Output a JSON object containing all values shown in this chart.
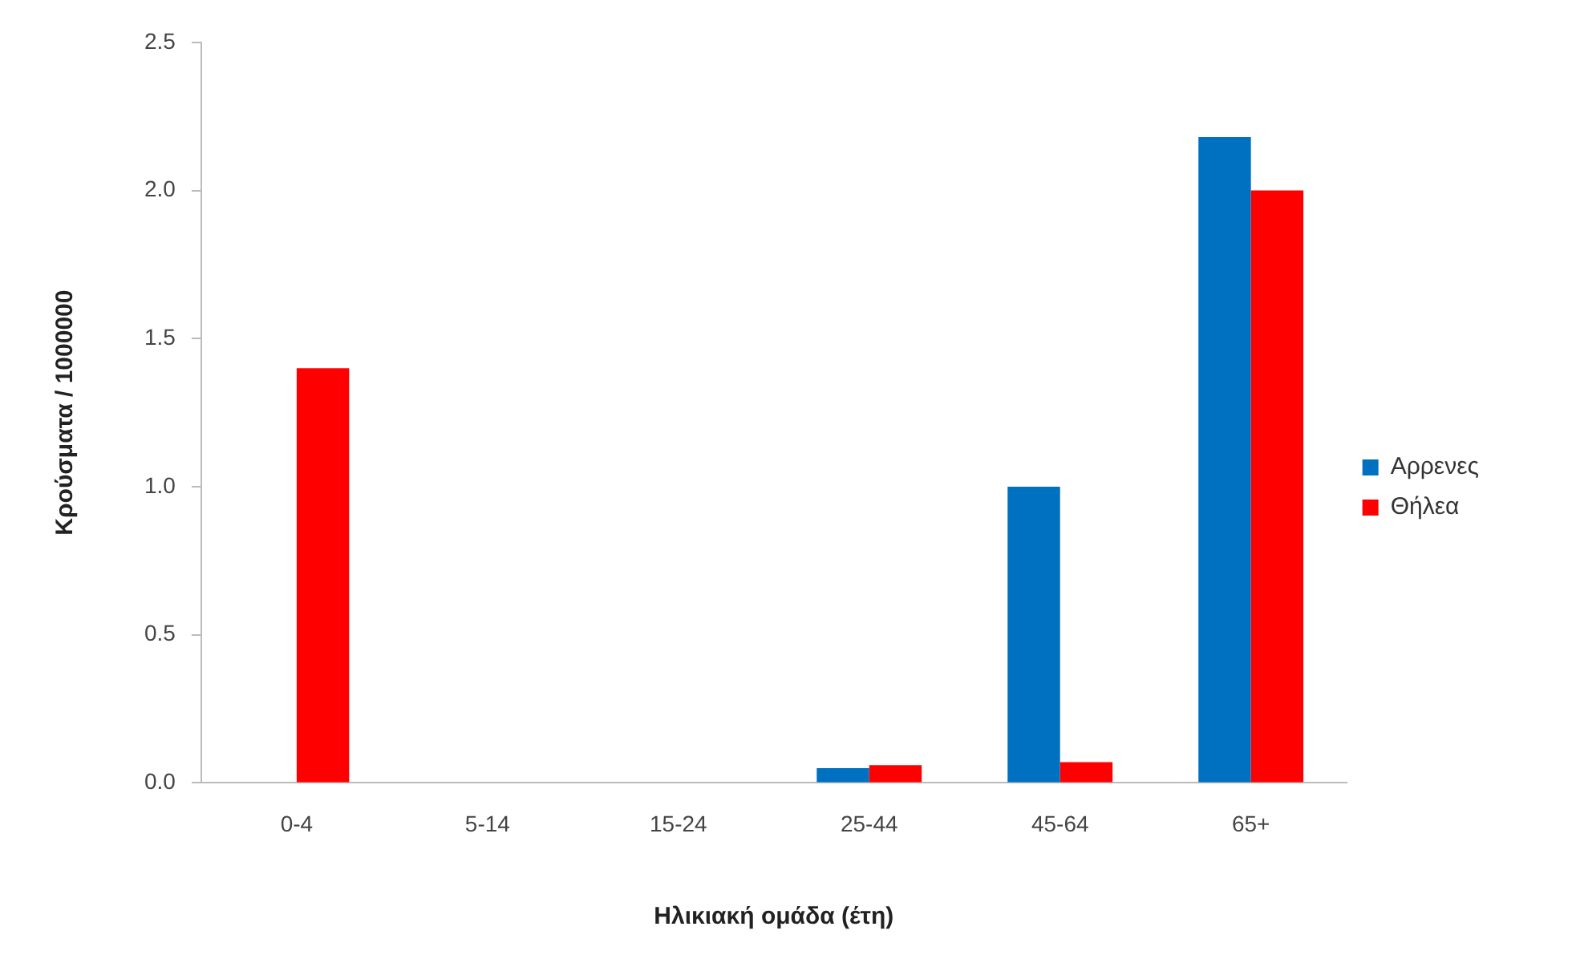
{
  "chart_data": {
    "type": "bar",
    "xlabel": "Ηλικιακή ομάδα (έτη)",
    "ylabel": "Κρούσματα / 1000000",
    "categories": [
      "0-4",
      "5-14",
      "15-24",
      "25-44",
      "45-64",
      "65+"
    ],
    "series": [
      {
        "name": "Αρρενες",
        "color": "#0070c0",
        "values": [
          0,
          0,
          0,
          0.05,
          1.0,
          2.18
        ]
      },
      {
        "name": "Θήλεα",
        "color": "#ff0000",
        "values": [
          1.4,
          0,
          0,
          0.06,
          0.07,
          2.0
        ]
      }
    ],
    "ylim": [
      0,
      2.5
    ],
    "yticks": [
      {
        "value": 0,
        "label": "0.0"
      },
      {
        "value": 0.5,
        "label": "0.5"
      },
      {
        "value": 1,
        "label": "1.0"
      },
      {
        "value": 1.5,
        "label": "1.5"
      },
      {
        "value": 2,
        "label": "2.0"
      },
      {
        "value": 2.5,
        "label": "2.5"
      }
    ],
    "grid": false,
    "legend": "right"
  }
}
